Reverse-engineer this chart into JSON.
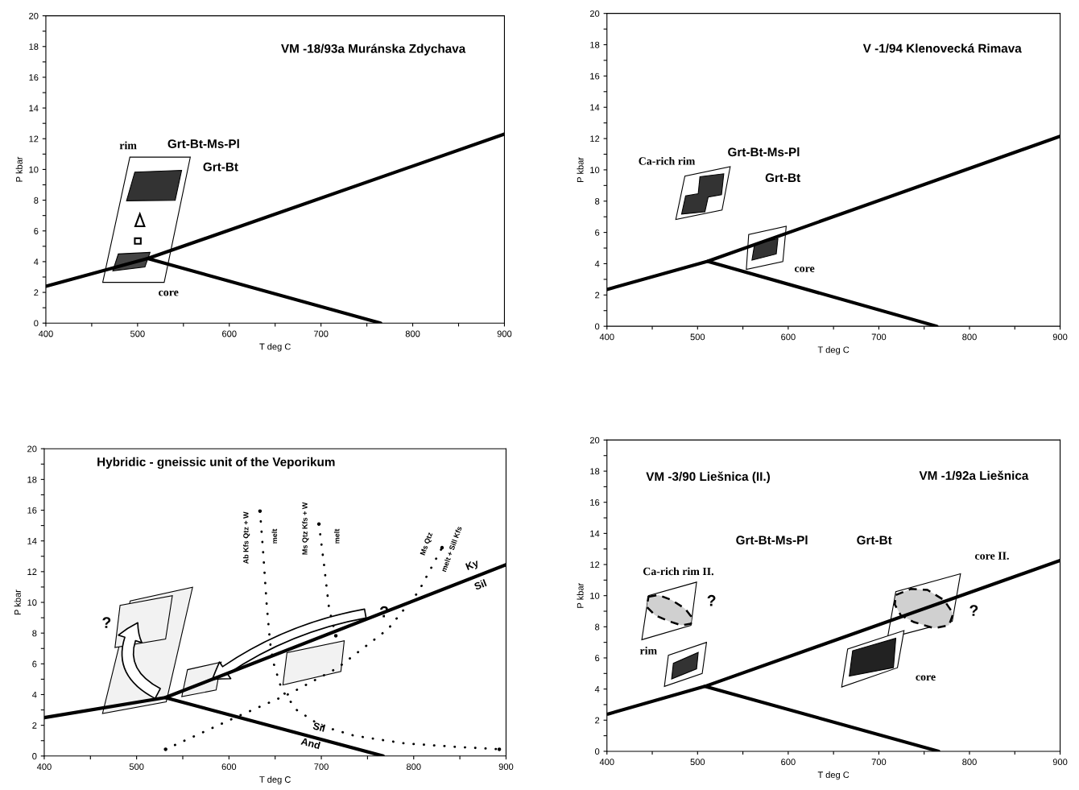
{
  "chart_data": [
    {
      "type": "line",
      "xlabel": "T deg C",
      "ylabel": "P kbar",
      "xlim": [
        400,
        900
      ],
      "ylim": [
        0,
        20
      ],
      "xticks": [
        400,
        {
          "value": 450,
          "label": null
        },
        500,
        {
          "value": 550,
          "label": null
        },
        600,
        {
          "value": 650,
          "label": null
        },
        700,
        {
          "value": 750,
          "label": null
        },
        800,
        {
          "value": 850,
          "label": null
        },
        900
      ],
      "yticks": [
        0,
        {
          "value": 1,
          "label": null
        },
        2,
        {
          "value": 3,
          "label": null
        },
        4,
        {
          "value": 5,
          "label": null
        },
        6,
        {
          "value": 7,
          "label": null
        },
        8,
        {
          "value": 9,
          "label": null
        },
        10,
        {
          "value": 11,
          "label": null
        },
        12,
        {
          "value": 13,
          "label": null
        },
        14,
        {
          "value": 15,
          "label": null
        },
        16,
        {
          "value": 17,
          "label": null
        },
        18,
        {
          "value": 19,
          "label": null
        },
        20
      ],
      "series": [
        {
          "type": "line",
          "color": "#000000",
          "line_style": "solid",
          "x": [
            400,
            511,
            900
          ],
          "values": [
            2.4,
            4.2,
            12.3
          ]
        },
        {
          "type": "line",
          "color": "#000000",
          "line_style": "solid",
          "x": [
            511,
            765
          ],
          "values": [
            4.2,
            0
          ]
        },
        {
          "type": "area",
          "color": "#ffffff",
          "line_style": "solid",
          "x": [
            462,
            491.6,
            557.5,
            529
          ],
          "values": [
            2.65,
            10.8,
            10.8,
            2.65
          ]
        },
        {
          "type": "area",
          "color": "#333333",
          "line_style": "solid",
          "x": [
            488,
            497,
            548,
            541
          ],
          "values": [
            7.96,
            9.83,
            9.94,
            8.0
          ]
        },
        {
          "type": "area",
          "color": "#444444",
          "line_style": "solid",
          "x": [
            473,
            479,
            513.6,
            508
          ],
          "values": [
            3.4,
            4.5,
            4.6,
            3.65
          ]
        }
      ],
      "annotations": [
        "VM -18/93a Muránska Zdychava",
        "rim",
        "Grt-Bt-Ms-Pl",
        "Grt-Bt",
        "core"
      ]
    },
    {
      "type": "line",
      "xlabel": "T deg C",
      "ylabel": "P kbar",
      "xlim": [
        400,
        900
      ],
      "ylim": [
        0,
        20
      ],
      "xticks": [
        400,
        {
          "value": 450,
          "label": null
        },
        500,
        {
          "value": 550,
          "label": null
        },
        600,
        {
          "value": 650,
          "label": null
        },
        700,
        {
          "value": 750,
          "label": null
        },
        800,
        {
          "value": 850,
          "label": null
        },
        900
      ],
      "yticks": [
        0,
        {
          "value": 1,
          "label": null
        },
        2,
        {
          "value": 3,
          "label": null
        },
        4,
        {
          "value": 5,
          "label": null
        },
        6,
        {
          "value": 7,
          "label": null
        },
        8,
        {
          "value": 9,
          "label": null
        },
        10,
        {
          "value": 11,
          "label": null
        },
        12,
        {
          "value": 13,
          "label": null
        },
        14,
        {
          "value": 15,
          "label": null
        },
        16,
        {
          "value": 17,
          "label": null
        },
        18,
        {
          "value": 19,
          "label": null
        },
        20
      ],
      "series": [
        {
          "type": "line",
          "color": "#000000",
          "line_style": "solid",
          "x": [
            400,
            511,
            900
          ],
          "values": [
            2.35,
            4.15,
            12.15
          ]
        },
        {
          "type": "line",
          "color": "#000000",
          "line_style": "solid",
          "x": [
            511,
            764
          ],
          "values": [
            4.15,
            0
          ]
        },
        {
          "type": "area",
          "color": "#ffffff",
          "line_style": "solid",
          "x": [
            476,
            486,
            536,
            527
          ],
          "values": [
            6.83,
            9.6,
            10.2,
            7.43
          ]
        },
        {
          "type": "area",
          "color": "#333333",
          "line_style": "solid",
          "x": [
            482.4,
            486.8,
            500.7,
            502.6,
            528.9,
            526.4,
            511.7,
            508.1
          ],
          "values": [
            7.17,
            8.34,
            8.47,
            9.56,
            9.75,
            8.41,
            8.26,
            7.32
          ]
        },
        {
          "type": "area",
          "color": "#ffffff",
          "line_style": "solid",
          "x": [
            553.8,
            556.4,
            597.8,
            594.1
          ],
          "values": [
            3.64,
            5.87,
            6.39,
            4.14
          ]
        },
        {
          "type": "area",
          "color": "#333333",
          "line_style": "solid",
          "x": [
            560,
            563,
            588.6,
            586.8
          ],
          "values": [
            4.23,
            5.27,
            5.59,
            4.62
          ]
        }
      ],
      "annotations": [
        "V -1/94 Klenovecká Rimava",
        "Ca-rich rim",
        "Grt-Bt-Ms-Pl",
        "Grt-Bt",
        "core"
      ]
    },
    {
      "type": "line",
      "xlabel": "T deg C",
      "ylabel": "P kbar",
      "xlim": [
        400,
        900
      ],
      "ylim": [
        0,
        20
      ],
      "xticks": [
        400,
        {
          "value": 450,
          "label": null
        },
        500,
        {
          "value": 550,
          "label": null
        },
        600,
        {
          "value": 650,
          "label": null
        },
        700,
        {
          "value": 750,
          "label": null
        },
        800,
        {
          "value": 850,
          "label": null
        },
        900
      ],
      "yticks": [
        0,
        {
          "value": 1,
          "label": null
        },
        2,
        {
          "value": 3,
          "label": null
        },
        4,
        {
          "value": 5,
          "label": null
        },
        6,
        {
          "value": 7,
          "label": null
        },
        8,
        {
          "value": 9,
          "label": null
        },
        10,
        {
          "value": 11,
          "label": null
        },
        12,
        {
          "value": 13,
          "label": null
        },
        14,
        {
          "value": 15,
          "label": null
        },
        16,
        {
          "value": 17,
          "label": null
        },
        18,
        {
          "value": 19,
          "label": null
        },
        20
      ],
      "series": [
        {
          "type": "area",
          "color": "#f2f2f2",
          "line_style": "solid",
          "x": [
            463.1,
            493.1,
            560.6,
            532.1
          ],
          "values": [
            2.76,
            10.1,
            10.98,
            3.53
          ]
        },
        {
          "type": "area",
          "color": "#f2f2f2",
          "line_style": "solid",
          "x": [
            476.6,
            482.1,
            538.7,
            531.4
          ],
          "values": [
            7.06,
            9.81,
            10.43,
            7.61
          ]
        },
        {
          "type": "area",
          "color": "#f2f2f2",
          "line_style": "solid",
          "x": [
            548.9,
            555.1,
            591.6,
            586.1
          ],
          "values": [
            3.86,
            5.62,
            6.11,
            4.3
          ]
        },
        {
          "type": "area",
          "color": "#f2f2f2",
          "line_style": "solid",
          "x": [
            658.4,
            662.8,
            724.8,
            721.2
          ],
          "values": [
            4.63,
            6.73,
            7.5,
            5.51
          ]
        },
        {
          "type": "line",
          "color": "#000000",
          "line_style": "solid",
          "x": [
            400,
            531,
            900
          ],
          "values": [
            2.5,
            3.8,
            12.45
          ]
        },
        {
          "type": "line",
          "color": "#000000",
          "line_style": "solid",
          "x": [
            531,
            767
          ],
          "values": [
            3.8,
            0
          ]
        },
        {
          "type": "line",
          "color": "#000000",
          "line_style": "dotted",
          "x": [
            633.6,
            637.2,
            640.9,
            644.5,
            648.2,
            657.3,
            673.7,
            699.3,
            735.8,
            790.5,
            845.3,
            892.7
          ],
          "values": [
            15.94,
            13.12,
            9.81,
            7.39,
            6.06,
            4.3,
            2.98,
            1.98,
            1.32,
            0.82,
            0.6,
            0.44
          ]
        },
        {
          "type": "line",
          "color": "#000000",
          "line_style": "dotted",
          "x": [
            697.4,
            702.9,
            708.4,
            715.7
          ],
          "values": [
            15.1,
            12.46,
            9.59,
            7.83
          ]
        },
        {
          "type": "line",
          "color": "#000000",
          "line_style": "dotted",
          "x": [
            531.4,
            608,
            666.4,
            717.5,
            772.3,
            805.1,
            830.7
          ],
          "values": [
            0.44,
            2.54,
            4.08,
            5.73,
            8.27,
            10.69,
            13.56
          ]
        }
      ],
      "annotations": [
        "Hybridic - gneissic unit of the Veporikum",
        "Ab Kfs Qtz + W",
        "melt",
        "Ms Qtz Kfs + W",
        "melt",
        "Ms Qtz",
        "melt + Sill Kfs",
        "Ky",
        "Sil",
        "Sil",
        "And",
        "?",
        "?"
      ]
    },
    {
      "type": "line",
      "xlabel": "T deg C",
      "ylabel": "P kbar",
      "xlim": [
        400,
        900
      ],
      "ylim": [
        0,
        20
      ],
      "xticks": [
        400,
        {
          "value": 450,
          "label": null
        },
        500,
        {
          "value": 550,
          "label": null
        },
        600,
        {
          "value": 650,
          "label": null
        },
        700,
        {
          "value": 750,
          "label": null
        },
        800,
        {
          "value": 850,
          "label": null
        },
        900
      ],
      "yticks": [
        0,
        {
          "value": 1,
          "label": null
        },
        2,
        {
          "value": 3,
          "label": null
        },
        4,
        {
          "value": 5,
          "label": null
        },
        6,
        {
          "value": 7,
          "label": null
        },
        8,
        {
          "value": 9,
          "label": null
        },
        10,
        {
          "value": 11,
          "label": null
        },
        12,
        {
          "value": 13,
          "label": null
        },
        14,
        {
          "value": 15,
          "label": null
        },
        16,
        {
          "value": 17,
          "label": null
        },
        18,
        {
          "value": 19,
          "label": null
        },
        20
      ],
      "series": [
        {
          "type": "line",
          "color": "#000000",
          "line_style": "solid",
          "x": [
            401,
            508,
            900
          ],
          "values": [
            2.39,
            4.17,
            12.26
          ]
        },
        {
          "type": "line",
          "color": "#000000",
          "line_style": "solid",
          "x": [
            508,
            766
          ],
          "values": [
            4.17,
            0
          ]
        },
        {
          "type": "area",
          "color": "#ffffff",
          "line_style": "solid",
          "x": [
            438.5,
            445.8,
            498.9,
            492.7
          ],
          "values": [
            7.17,
            10.0,
            10.87,
            8.09
          ]
        },
        {
          "type": "area",
          "color": "#d0d0d0",
          "line_style": "dashed",
          "x": [
            445.8,
            456.8,
            471.4,
            486.1,
            493.4,
            492.7,
            482.4,
            467.8,
            453.1,
            444.0
          ],
          "values": [
            9.93,
            10.04,
            9.72,
            9.17,
            8.63,
            8.2,
            8.09,
            8.37,
            8.74,
            9.28
          ]
        },
        {
          "type": "area",
          "color": "#ffffff",
          "line_style": "solid",
          "x": [
            463.4,
            467.8,
            509.9,
            505.1
          ],
          "values": [
            4.17,
            6.17,
            7.0,
            5.0
          ]
        },
        {
          "type": "area",
          "color": "#333333",
          "line_style": "solid",
          "x": [
            471.4,
            473.3,
            500.7,
            498.9
          ],
          "values": [
            4.65,
            5.65,
            6.35,
            5.3
          ]
        },
        {
          "type": "area",
          "color": "#ffffff",
          "line_style": "solid",
          "x": [
            709.5,
            718.7,
            790.1,
            781
          ],
          "values": [
            7.26,
            10.26,
            11.41,
            8.35
          ]
        },
        {
          "type": "area",
          "color": "#d0d0d0",
          "line_style": "dashed",
          "x": [
            718.7,
            735.2,
            753.5,
            771.8,
            782.1,
            777.3,
            760.8,
            738.8,
            724.2,
            717.6
          ],
          "values": [
            10.04,
            10.43,
            10.37,
            9.72,
            8.85,
            8.09,
            7.91,
            8.3,
            8.74,
            9.43
          ]
        },
        {
          "type": "area",
          "color": "#ffffff",
          "line_style": "solid",
          "x": [
            659,
            665.6,
            727.8,
            720.5
          ],
          "values": [
            4.13,
            6.57,
            7.76,
            5.37
          ]
        },
        {
          "type": "area",
          "color": "#222222",
          "line_style": "solid",
          "x": [
            667.4,
            671.1,
            718.7,
            716.1
          ],
          "values": [
            4.83,
            6.46,
            7.26,
            5.37
          ]
        }
      ],
      "annotations": [
        "VM -3/90 Liešnica (II.)",
        "VM -1/92a Liešnica",
        "Grt-Bt-Ms-Pl",
        "Grt-Bt",
        "core II.",
        "Ca-rich rim II.",
        "?",
        "?",
        "rim",
        "core"
      ]
    }
  ]
}
